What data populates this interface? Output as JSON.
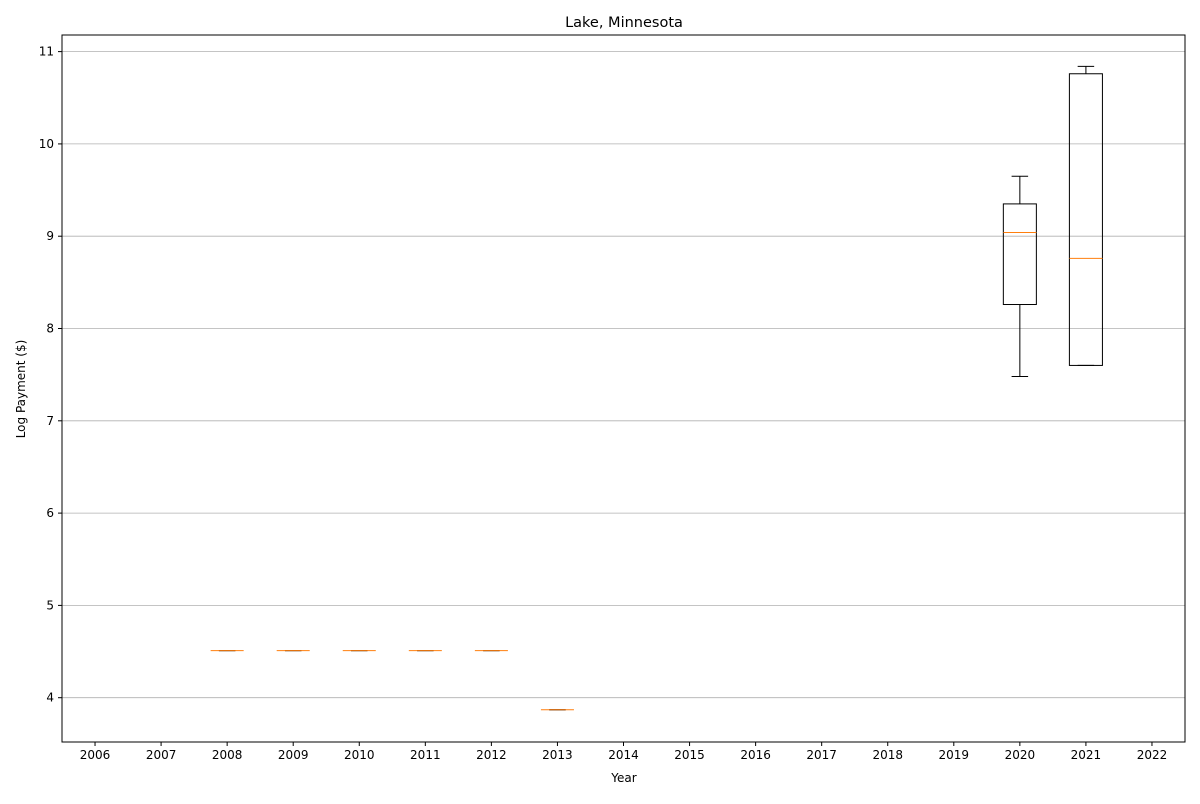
{
  "chart_data": {
    "type": "boxplot",
    "title": "Lake, Minnesota",
    "xlabel": "Year",
    "ylabel": "Log Payment ($)",
    "categories": [
      "2006",
      "2007",
      "2008",
      "2009",
      "2010",
      "2011",
      "2012",
      "2013",
      "2014",
      "2015",
      "2016",
      "2017",
      "2018",
      "2019",
      "2020",
      "2021",
      "2022"
    ],
    "ylim": [
      3.52,
      11.18
    ],
    "yticks": [
      4,
      5,
      6,
      7,
      8,
      9,
      10,
      11
    ],
    "grid": "horizontal",
    "colors": {
      "box": "#000000",
      "median": "#ff7f0e",
      "grid": "#b0b0b0",
      "axis": "#000000"
    },
    "boxes": [
      {
        "category": "2008",
        "min": 4.51,
        "q1": 4.51,
        "median": 4.51,
        "q3": 4.51,
        "max": 4.51
      },
      {
        "category": "2009",
        "min": 4.51,
        "q1": 4.51,
        "median": 4.51,
        "q3": 4.51,
        "max": 4.51
      },
      {
        "category": "2010",
        "min": 4.51,
        "q1": 4.51,
        "median": 4.51,
        "q3": 4.51,
        "max": 4.51
      },
      {
        "category": "2011",
        "min": 4.51,
        "q1": 4.51,
        "median": 4.51,
        "q3": 4.51,
        "max": 4.51
      },
      {
        "category": "2012",
        "min": 4.51,
        "q1": 4.51,
        "median": 4.51,
        "q3": 4.51,
        "max": 4.51
      },
      {
        "category": "2013",
        "min": 3.87,
        "q1": 3.87,
        "median": 3.87,
        "q3": 3.87,
        "max": 3.87
      },
      {
        "category": "2020",
        "min": 7.48,
        "q1": 8.26,
        "median": 9.04,
        "q3": 9.35,
        "max": 9.65
      },
      {
        "category": "2021",
        "min": 7.6,
        "q1": 7.6,
        "median": 8.76,
        "q3": 10.76,
        "max": 10.84
      }
    ]
  }
}
